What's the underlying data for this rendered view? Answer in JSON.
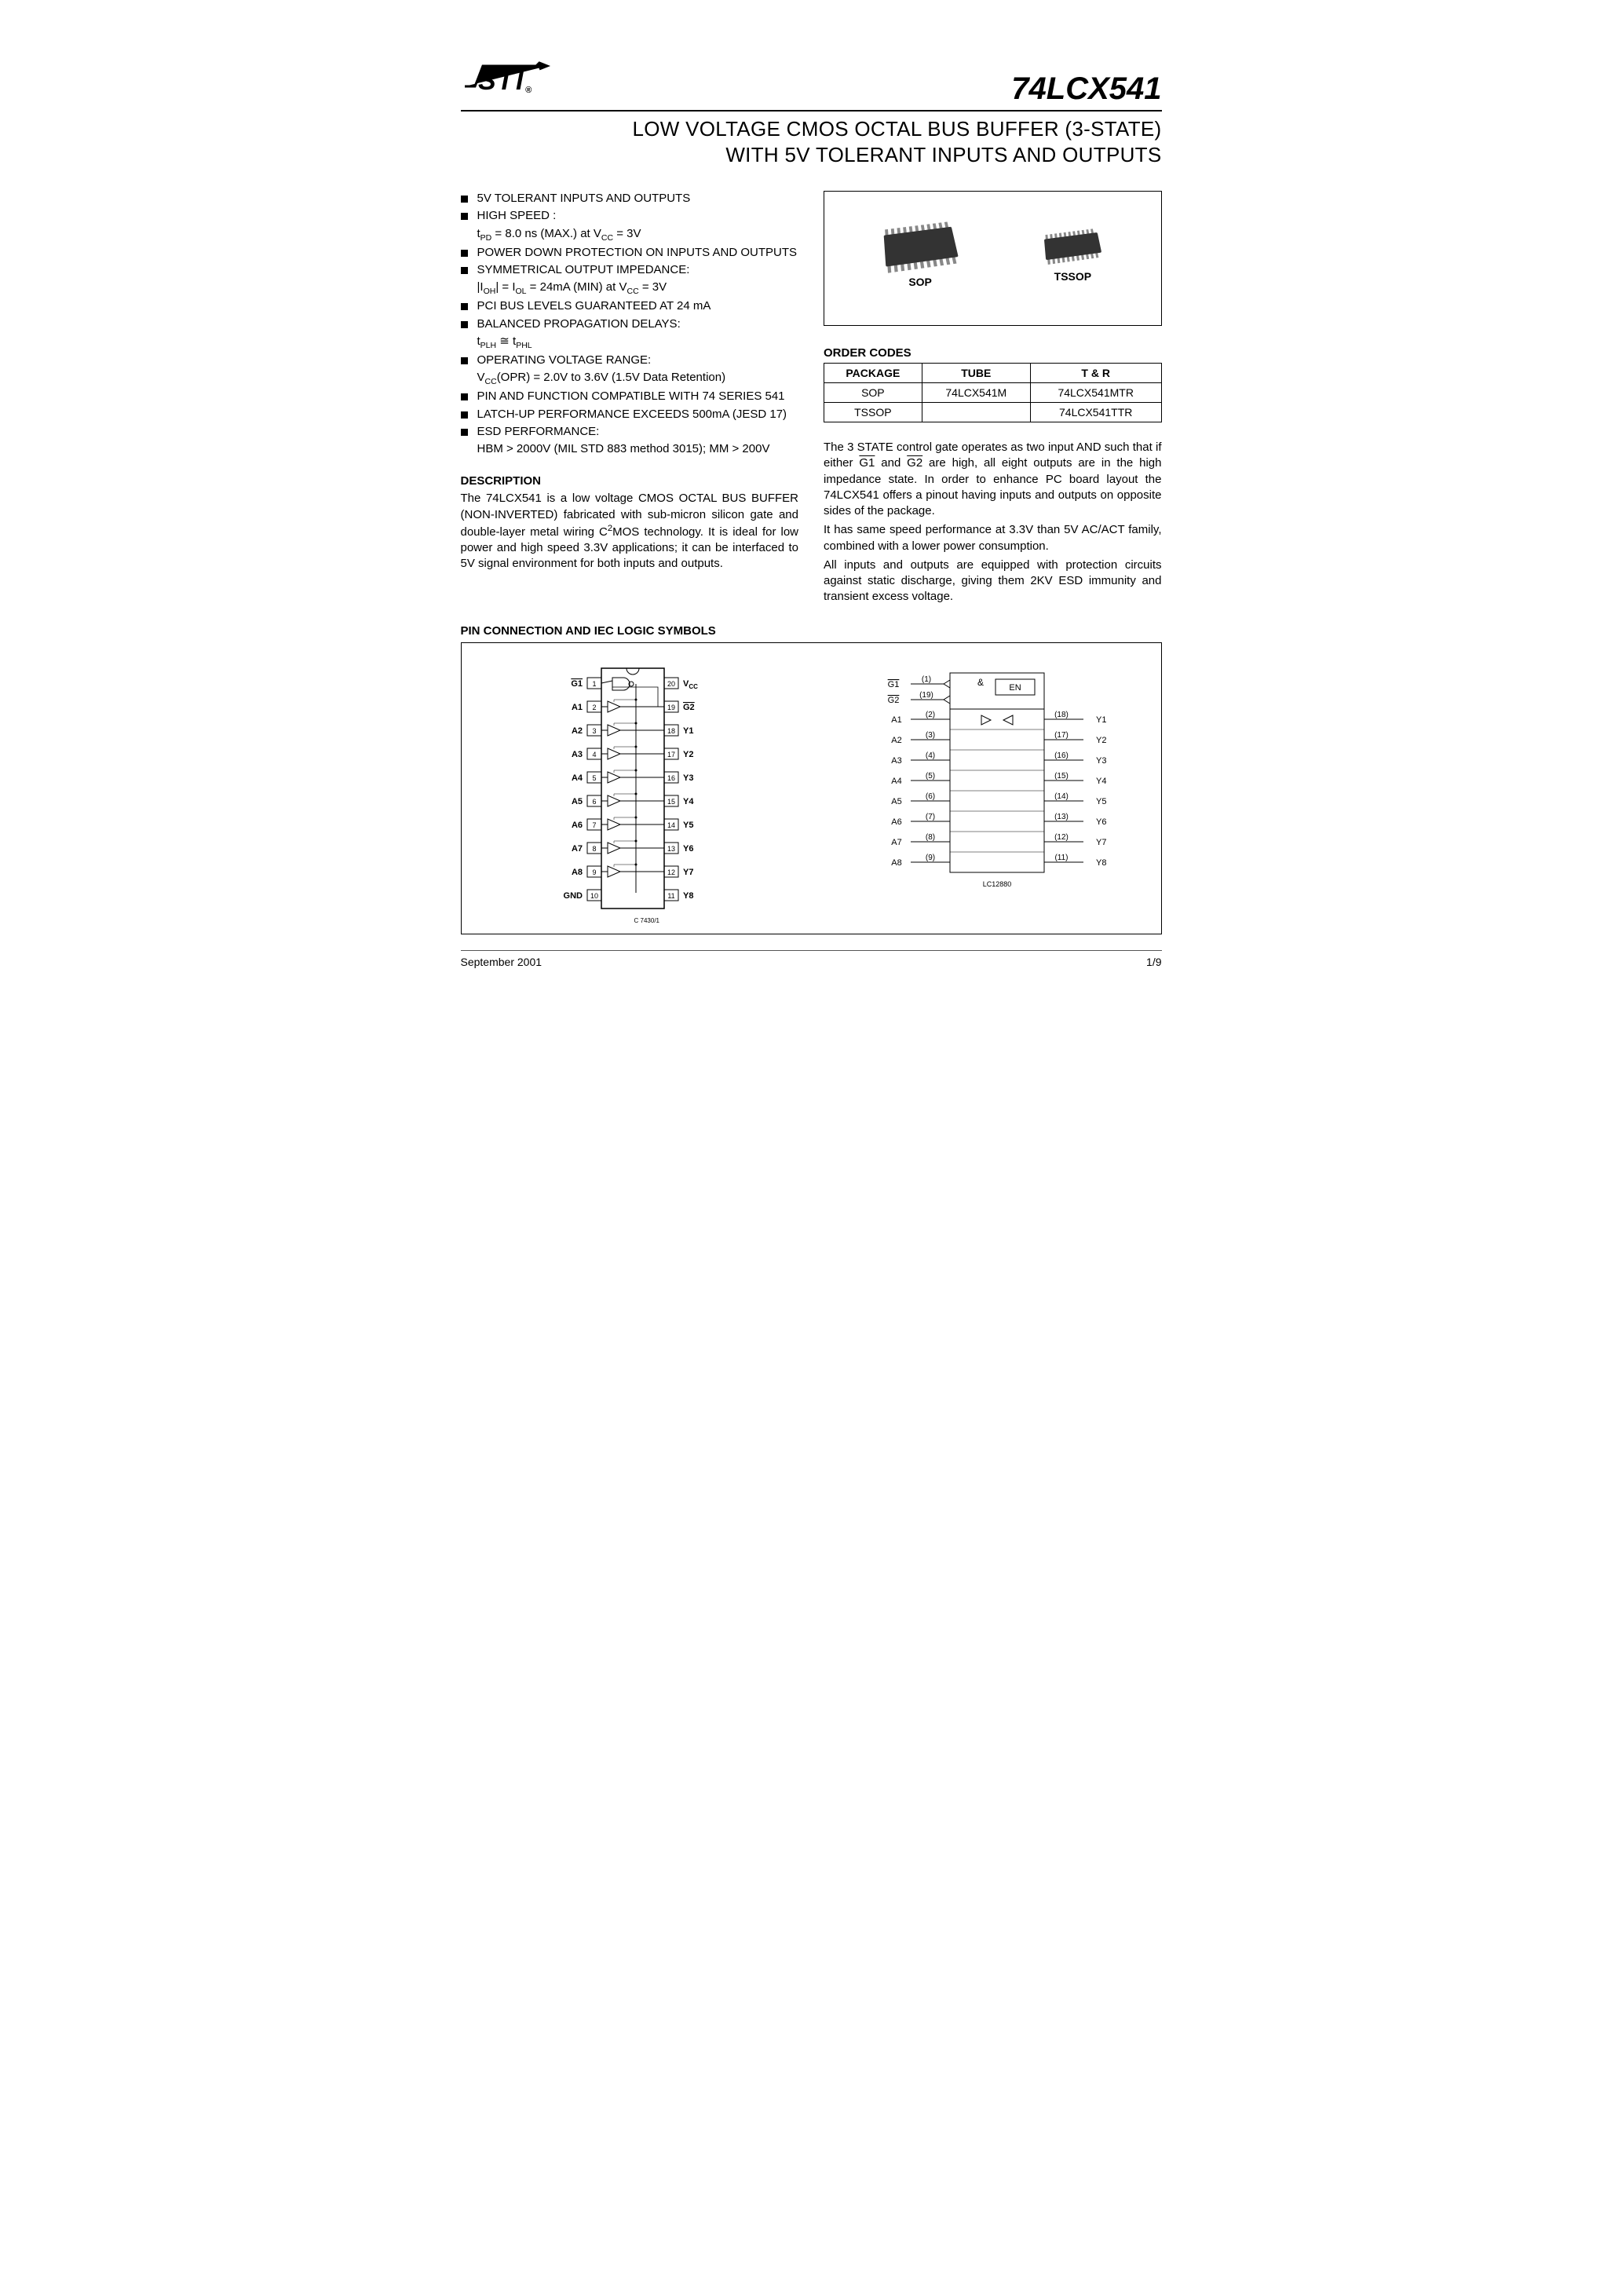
{
  "partNumber": "74LCX541",
  "logoText": "ST",
  "title": {
    "line1": "LOW VOLTAGE CMOS  OCTAL BUS BUFFER (3-STATE)",
    "line2": "WITH 5V TOLERANT INPUTS AND OUTPUTS"
  },
  "features": [
    {
      "text": "5V TOLERANT INPUTS AND OUTPUTS"
    },
    {
      "text": "HIGH SPEED :",
      "sub": "t<sub>PD</sub> = 8.0 ns (MAX.) at V<sub>CC</sub> = 3V"
    },
    {
      "text": "POWER DOWN PROTECTION ON INPUTS AND OUTPUTS"
    },
    {
      "text": "SYMMETRICAL OUTPUT IMPEDANCE:",
      "sub": "|I<sub>OH</sub>| = I<sub>OL</sub> = 24mA (MIN) at V<sub>CC</sub> = 3V"
    },
    {
      "text": "PCI BUS LEVELS GUARANTEED AT 24 mA"
    },
    {
      "text": "BALANCED PROPAGATION DELAYS:",
      "sub": "t<sub>PLH</sub> ≅ t<sub>PHL</sub>"
    },
    {
      "text": "OPERATING VOLTAGE RANGE:",
      "sub": "V<sub>CC</sub>(OPR) = 2.0V to 3.6V (1.5V Data Retention)"
    },
    {
      "text": "PIN AND FUNCTION COMPATIBLE WITH 74 SERIES 541"
    },
    {
      "text": "LATCH-UP PERFORMANCE EXCEEDS 500mA (JESD 17)"
    },
    {
      "text": "ESD PERFORMANCE:",
      "sub": "HBM > 2000V (MIL STD 883 method 3015); MM > 200V"
    }
  ],
  "description": {
    "heading": "DESCRIPTION",
    "para1": "The 74LCX541 is a low voltage CMOS OCTAL BUS BUFFER (NON-INVERTED) fabricated with sub-micron silicon gate and double-layer metal wiring C²MOS technology. It is ideal for low power and high speed 3.3V applications; it can be interfaced to 5V signal environment for both inputs and outputs."
  },
  "packages": {
    "sopLabel": "SOP",
    "tssopLabel": "TSSOP"
  },
  "orderCodes": {
    "heading": "ORDER CODES",
    "columns": [
      "PACKAGE",
      "TUBE",
      "T & R"
    ],
    "rows": [
      [
        "SOP",
        "74LCX541M",
        "74LCX541MTR"
      ],
      [
        "TSSOP",
        "",
        "74LCX541TTR"
      ]
    ]
  },
  "rightPara1": "The 3 STATE control gate operates as two input AND such that if either G1 and G2 are high, all eight outputs are in the high impedance state. In order to enhance PC board layout the 74LCX541 offers a pinout having inputs and outputs on opposite sides of the package.",
  "rightPara2": "It has same speed performance at 3.3V than 5V AC/ACT family, combined with a lower power consumption.",
  "rightPara3": "All inputs and outputs are equipped with protection circuits against static discharge, giving them 2KV ESD immunity and transient excess voltage.",
  "pinConnHeading": "PIN CONNECTION AND IEC LOGIC SYMBOLS",
  "pinout": {
    "left": [
      [
        "G1",
        "1"
      ],
      [
        "A1",
        "2"
      ],
      [
        "A2",
        "3"
      ],
      [
        "A3",
        "4"
      ],
      [
        "A4",
        "5"
      ],
      [
        "A5",
        "6"
      ],
      [
        "A6",
        "7"
      ],
      [
        "A7",
        "8"
      ],
      [
        "A8",
        "9"
      ],
      [
        "GND",
        "10"
      ]
    ],
    "right": [
      [
        "20",
        "VCC"
      ],
      [
        "19",
        "G2"
      ],
      [
        "18",
        "Y1"
      ],
      [
        "17",
        "Y2"
      ],
      [
        "16",
        "Y3"
      ],
      [
        "15",
        "Y4"
      ],
      [
        "14",
        "Y5"
      ],
      [
        "13",
        "Y6"
      ],
      [
        "12",
        "Y7"
      ],
      [
        "11",
        "Y8"
      ]
    ],
    "footer": "C 7430/1"
  },
  "iec": {
    "enLabels": {
      "g1": "G1",
      "g2": "G2",
      "amp": "&",
      "en": "EN"
    },
    "pins": [
      {
        "in": "A1",
        "ipin": "(2)",
        "opin": "(18)",
        "out": "Y1"
      },
      {
        "in": "A2",
        "ipin": "(3)",
        "opin": "(17)",
        "out": "Y2"
      },
      {
        "in": "A3",
        "ipin": "(4)",
        "opin": "(16)",
        "out": "Y3"
      },
      {
        "in": "A4",
        "ipin": "(5)",
        "opin": "(15)",
        "out": "Y4"
      },
      {
        "in": "A5",
        "ipin": "(6)",
        "opin": "(14)",
        "out": "Y5"
      },
      {
        "in": "A6",
        "ipin": "(7)",
        "opin": "(13)",
        "out": "Y6"
      },
      {
        "in": "A7",
        "ipin": "(8)",
        "opin": "(12)",
        "out": "Y7"
      },
      {
        "in": "A8",
        "ipin": "(9)",
        "opin": "(11)",
        "out": "Y8"
      }
    ],
    "g1pin": "(1)",
    "g2pin": "(19)",
    "footer": "LC12880"
  },
  "footer": {
    "date": "September 2001",
    "page": "1/9"
  },
  "colors": {
    "text": "#000000",
    "bg": "#ffffff",
    "rule": "#000000"
  }
}
